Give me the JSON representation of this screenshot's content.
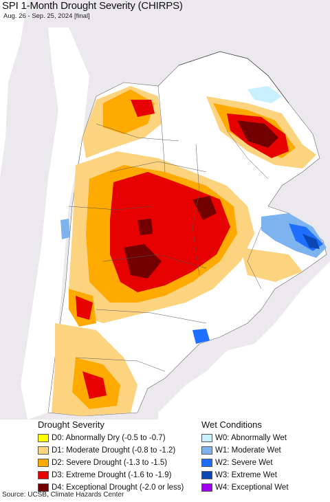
{
  "title": "SPI 1-Month Drought Severity (CHIRPS)",
  "subtitle": "Aug. 26 - Sep. 25, 2024 [final]",
  "legend": {
    "drought": {
      "heading": "Drought Severity",
      "items": [
        {
          "label": "D0: Abnormally Dry (-0.5 to -0.7)",
          "color": "#ffff00"
        },
        {
          "label": "D1: Moderate Drought (-0.8 to -1.2)",
          "color": "#fcd37f"
        },
        {
          "label": "D2: Severe Drought (-1.3 to -1.5)",
          "color": "#ffaa00"
        },
        {
          "label": "D3: Extreme Drought (-1.6 to -1.9)",
          "color": "#e60000"
        },
        {
          "label": "D4: Exceptional Drought (-2.0 or less)",
          "color": "#730000"
        }
      ]
    },
    "wet": {
      "heading": "Wet Conditions",
      "items": [
        {
          "label": "W0: Abnormally Wet",
          "color": "#c8f0ff"
        },
        {
          "label": "W1: Moderate Wet",
          "color": "#7db4f0"
        },
        {
          "label": "W2: Severe Wet",
          "color": "#1e6eff"
        },
        {
          "label": "W3: Extreme Wet",
          "color": "#0a46b4"
        },
        {
          "label": "W4: Exceptional Wet",
          "color": "#a000f0"
        }
      ]
    }
  },
  "source": "Source: UCSB, Climate Hazards Center"
}
